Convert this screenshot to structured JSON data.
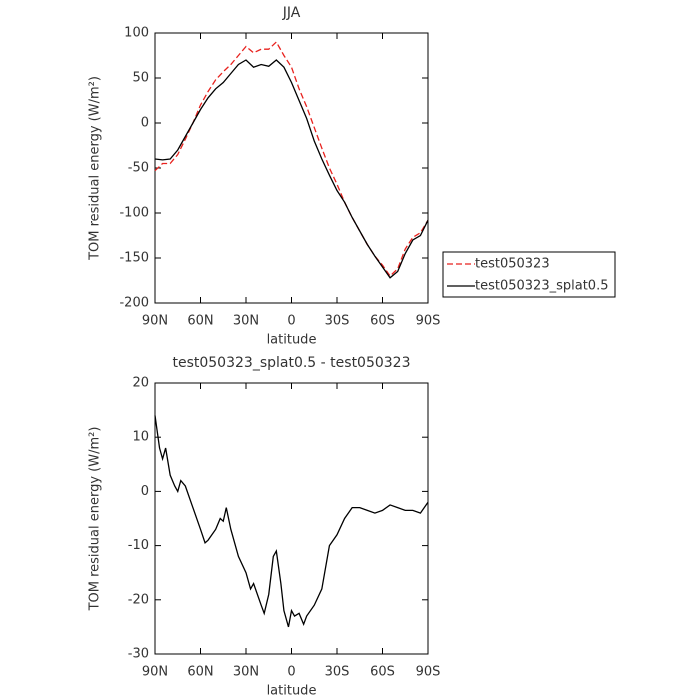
{
  "chart_data": [
    {
      "type": "line",
      "title": "JJA",
      "xlabel": "latitude",
      "ylabel": "TOM residual energy (W/m²)",
      "x": [
        90,
        85,
        80,
        75,
        70,
        65,
        60,
        55,
        50,
        45,
        40,
        35,
        30,
        25,
        20,
        15,
        10,
        5,
        0,
        -5,
        -10,
        -15,
        -20,
        -25,
        -30,
        -35,
        -40,
        -45,
        -50,
        -55,
        -60,
        -65,
        -70,
        -75,
        -80,
        -85,
        -90
      ],
      "series": [
        {
          "name": "test050323",
          "color": "#e8221e",
          "dash": true,
          "values": [
            -53,
            -45,
            -45,
            -35,
            -18,
            0,
            20,
            35,
            48,
            57,
            65,
            75,
            85,
            78,
            82,
            82,
            90,
            75,
            62,
            38,
            18,
            -5,
            -28,
            -50,
            -68,
            -88,
            -105,
            -120,
            -135,
            -148,
            -158,
            -170,
            -162,
            -140,
            -127,
            -122,
            -108
          ]
        },
        {
          "name": "test050323_splat0.5",
          "color": "#000000",
          "dash": false,
          "values": [
            -40,
            -41,
            -40,
            -30,
            -15,
            0,
            15,
            28,
            38,
            45,
            55,
            65,
            70,
            62,
            65,
            63,
            70,
            62,
            45,
            25,
            5,
            -20,
            -40,
            -58,
            -75,
            -88,
            -105,
            -120,
            -135,
            -148,
            -160,
            -172,
            -165,
            -145,
            -130,
            -125,
            -108
          ]
        }
      ],
      "xlim": [
        90,
        -90
      ],
      "xticks": [
        {
          "value": 90,
          "label": "90N"
        },
        {
          "value": 60,
          "label": "60N"
        },
        {
          "value": 30,
          "label": "30N"
        },
        0,
        {
          "value": -30,
          "label": "30S"
        },
        {
          "value": -60,
          "label": "60S"
        },
        {
          "value": -90,
          "label": "90S"
        }
      ],
      "ylim": [
        -200,
        100
      ],
      "yticks": [
        -200,
        -150,
        -100,
        -50,
        0,
        50,
        100
      ],
      "legend": "outside-right"
    },
    {
      "type": "line",
      "title": "test050323_splat0.5 - test050323",
      "xlabel": "latitude",
      "ylabel": "TOM residual energy (W/m²)",
      "x": [
        90,
        87,
        85,
        83,
        80,
        77,
        75,
        73,
        70,
        65,
        60,
        57,
        55,
        50,
        47,
        45,
        43,
        40,
        35,
        30,
        27,
        25,
        20,
        18,
        15,
        12,
        10,
        7,
        5,
        2,
        0,
        -2,
        -5,
        -8,
        -10,
        -15,
        -20,
        -25,
        -30,
        -35,
        -40,
        -45,
        -50,
        -55,
        -60,
        -65,
        -70,
        -75,
        -80,
        -85,
        -90
      ],
      "series": [
        {
          "name": "test050323_splat0.5 - test050323",
          "color": "#000000",
          "dash": false,
          "values": [
            14,
            8,
            6,
            8,
            3,
            1,
            0,
            2,
            1,
            -3,
            -7,
            -9.5,
            -9,
            -7,
            -5,
            -5.5,
            -3,
            -7,
            -12,
            -15,
            -18,
            -17,
            -21,
            -22.5,
            -19,
            -12,
            -11,
            -17,
            -22,
            -25,
            -22,
            -23,
            -22.5,
            -24.5,
            -23,
            -21,
            -18,
            -10,
            -8,
            -5,
            -3,
            -3,
            -3.5,
            -4,
            -3.5,
            -2.5,
            -3,
            -3.5,
            -3.5,
            -4,
            -2
          ]
        }
      ],
      "xlim": [
        90,
        -90
      ],
      "xticks": [
        {
          "value": 90,
          "label": "90N"
        },
        {
          "value": 60,
          "label": "60N"
        },
        {
          "value": 30,
          "label": "30N"
        },
        0,
        {
          "value": -30,
          "label": "30S"
        },
        {
          "value": -60,
          "label": "60S"
        },
        {
          "value": -90,
          "label": "90S"
        }
      ],
      "ylim": [
        -30,
        20
      ],
      "yticks": [
        -30,
        -20,
        -10,
        0,
        10,
        20
      ]
    }
  ]
}
